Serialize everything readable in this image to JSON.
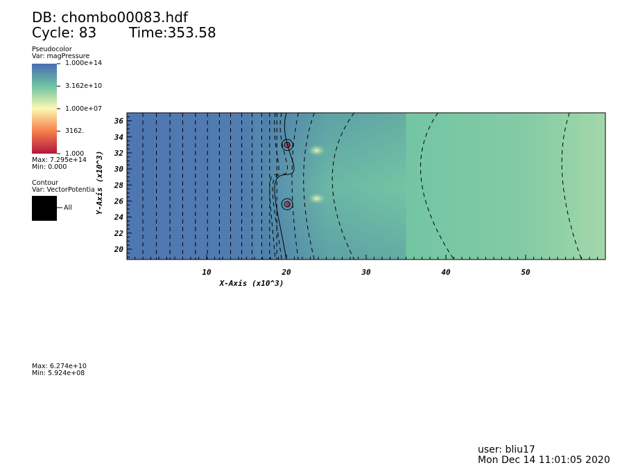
{
  "header": {
    "db": "DB: chombo00083.hdf",
    "cycle": "Cycle: 83",
    "time": "Time:353.58"
  },
  "pseudocolor_legend": {
    "title": "Pseudocolor",
    "var": "Var: magPressure",
    "ticks": [
      "1.000e+14",
      "3.162e+10",
      "1.000e+07",
      "3162.",
      "1.000"
    ],
    "max": "Max:  7.295e+14",
    "min": "Min:  0.000"
  },
  "contour_legend": {
    "title": "Contour",
    "var": "Var: VectorPotentia",
    "entry": "All",
    "max": "Max:  6.274e+10",
    "min": "Min:  5.924e+08"
  },
  "footer": {
    "user": "user: bliu17",
    "date": "Mon Dec 14 11:01:05 2020"
  },
  "colors": {
    "colormap": [
      "#b2163f",
      "#f77f4a",
      "#fbf8b4",
      "#6fc3a2",
      "#4a6cb4"
    ],
    "contour": "#000000"
  },
  "chart_data": {
    "type": "heatmap",
    "xlabel": "X-Axis (x10^3)",
    "ylabel": "Y-Axis (x10^3)",
    "xlim": [
      0,
      60
    ],
    "ylim": [
      18.7,
      37
    ],
    "x_ticks": [
      10,
      20,
      30,
      40,
      50
    ],
    "y_ticks": [
      20,
      22,
      24,
      26,
      28,
      30,
      32,
      34,
      36
    ],
    "x_tick_labels": [
      "10",
      "20",
      "30",
      "40",
      "50"
    ],
    "y_tick_labels": [
      "20",
      "22",
      "24",
      "26",
      "28",
      "30",
      "32",
      "34",
      "36"
    ],
    "x_minor_step": 1,
    "y_minor_step": 0.5,
    "color_scale": "log",
    "color_range": [
      1,
      100000000000000.0
    ],
    "field_samples": [
      {
        "x": 0,
        "log_value": 13.6
      },
      {
        "x": 15,
        "log_value": 13.3
      },
      {
        "x": 20,
        "log_value": 12.2
      },
      {
        "x": 25,
        "log_value": 11.0
      },
      {
        "x": 35,
        "log_value": 10.4
      },
      {
        "x": 50,
        "log_value": 10.0
      },
      {
        "x": 60,
        "log_value": 9.2
      }
    ],
    "hot_spots": [
      {
        "x": 20.2,
        "y": 33
      },
      {
        "x": 20.2,
        "y": 25.6
      }
    ],
    "bright_spots": [
      {
        "x": 23.8,
        "y": 32.3
      },
      {
        "x": 23.8,
        "y": 26.3
      }
    ],
    "contour_lines": {
      "vertical_x": [
        2.0,
        3.7,
        5.4,
        7.0,
        8.6,
        10.1,
        11.6,
        13.0,
        14.4,
        15.7,
        16.9,
        17.9,
        18.8
      ],
      "curved": [
        {
          "x_top": 21.5,
          "x_mid": 19.9,
          "x_bottom": 21.5
        },
        {
          "x_top": 23.5,
          "x_mid": 20.8,
          "x_bottom": 23.5
        },
        {
          "x_top": 28.5,
          "x_mid": 23.0,
          "x_bottom": 28.5
        },
        {
          "x_top": 39.0,
          "x_mid": 33.8,
          "x_bottom": 41.0
        },
        {
          "x_top": 55.5,
          "x_mid": 53.0,
          "x_bottom": 57.0
        }
      ],
      "loops": [
        {
          "x": 20.1,
          "y": 33.0,
          "radii": [
            0.35,
            0.7
          ]
        },
        {
          "x": 20.1,
          "y": 25.6,
          "radii": [
            0.35,
            0.7
          ]
        }
      ]
    }
  }
}
